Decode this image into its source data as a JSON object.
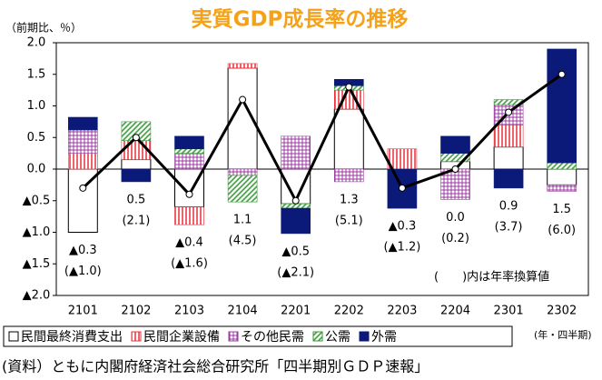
{
  "chart_data": {
    "type": "stacked-bar-line",
    "title": "実質GDP成長率の推移",
    "title_color": "#f5a21b",
    "y_label": "（前期比、％）",
    "x_label": "(年・四半期)",
    "note": "(　　)内は年率換算値",
    "source": "(資料）ともに内閣府経済社会総合研究所「四半期別ＧＤＰ速報」",
    "categories": [
      "2101",
      "2102",
      "2103",
      "2104",
      "2201",
      "2202",
      "2203",
      "2204",
      "2301",
      "2302"
    ],
    "ylim": [
      -2.0,
      2.0
    ],
    "yticks": [
      {
        "value": 2.0,
        "label": "2.0"
      },
      {
        "value": 1.5,
        "label": "1.5"
      },
      {
        "value": 1.0,
        "label": "1.0"
      },
      {
        "value": 0.5,
        "label": "0.5"
      },
      {
        "value": 0,
        "label": "0.0"
      },
      {
        "value": -0.5,
        "label": "▲0.5"
      },
      {
        "value": -1.0,
        "label": "▲1.0"
      },
      {
        "value": -1.5,
        "label": "▲1.5"
      },
      {
        "value": -2.0,
        "label": "▲2.0"
      }
    ],
    "series": [
      {
        "name": "民間最終消費支出",
        "color": "#000000",
        "pattern": "plain",
        "values": [
          -1.0,
          0.15,
          -0.6,
          1.6,
          -0.55,
          0.95,
          0,
          0.12,
          0.35,
          -0.25
        ]
      },
      {
        "name": "民間企業設備",
        "color": "#e8303a",
        "pattern": "vertical",
        "values": [
          0.25,
          0.3,
          -0.28,
          0.07,
          0,
          0.3,
          0.32,
          0,
          0.35,
          0
        ]
      },
      {
        "name": "その他民需",
        "color": "#9b3aa0",
        "pattern": "grid",
        "values": [
          0.37,
          0,
          0.25,
          -0.1,
          0.52,
          -0.2,
          0,
          -0.48,
          0.32,
          -0.1
        ]
      },
      {
        "name": "公需",
        "color": "#3a9a3a",
        "pattern": "diagonal",
        "values": [
          0,
          0.3,
          0.07,
          -0.42,
          -0.07,
          0.07,
          0,
          0.13,
          0.08,
          0.1
        ]
      },
      {
        "name": "外需",
        "color": "#0b1a78",
        "pattern": "solid",
        "values": [
          0.2,
          -0.2,
          0.2,
          0,
          -0.4,
          0.1,
          -0.62,
          0.27,
          -0.3,
          1.8
        ]
      }
    ],
    "line": {
      "color": "#000000",
      "values": [
        -0.3,
        0.5,
        -0.4,
        1.1,
        -0.5,
        1.3,
        -0.3,
        0.0,
        0.9,
        1.5
      ],
      "value_labels": [
        "▲0.3",
        "0.5",
        "▲0.4",
        "1.1",
        "▲0.5",
        "1.3",
        "▲0.3",
        "0.0",
        "0.9",
        "1.5"
      ]
    },
    "annualized": {
      "values": [
        -1.0,
        2.1,
        -1.6,
        4.5,
        -2.1,
        5.1,
        -1.2,
        0.2,
        3.7,
        6.0
      ],
      "value_labels": [
        "(▲1.0)",
        "(2.1)",
        "(▲1.6)",
        "(4.5)",
        "(▲2.1)",
        "(5.1)",
        "(▲1.2)",
        "(0.2)",
        "(3.7)",
        "(6.0)"
      ]
    }
  }
}
